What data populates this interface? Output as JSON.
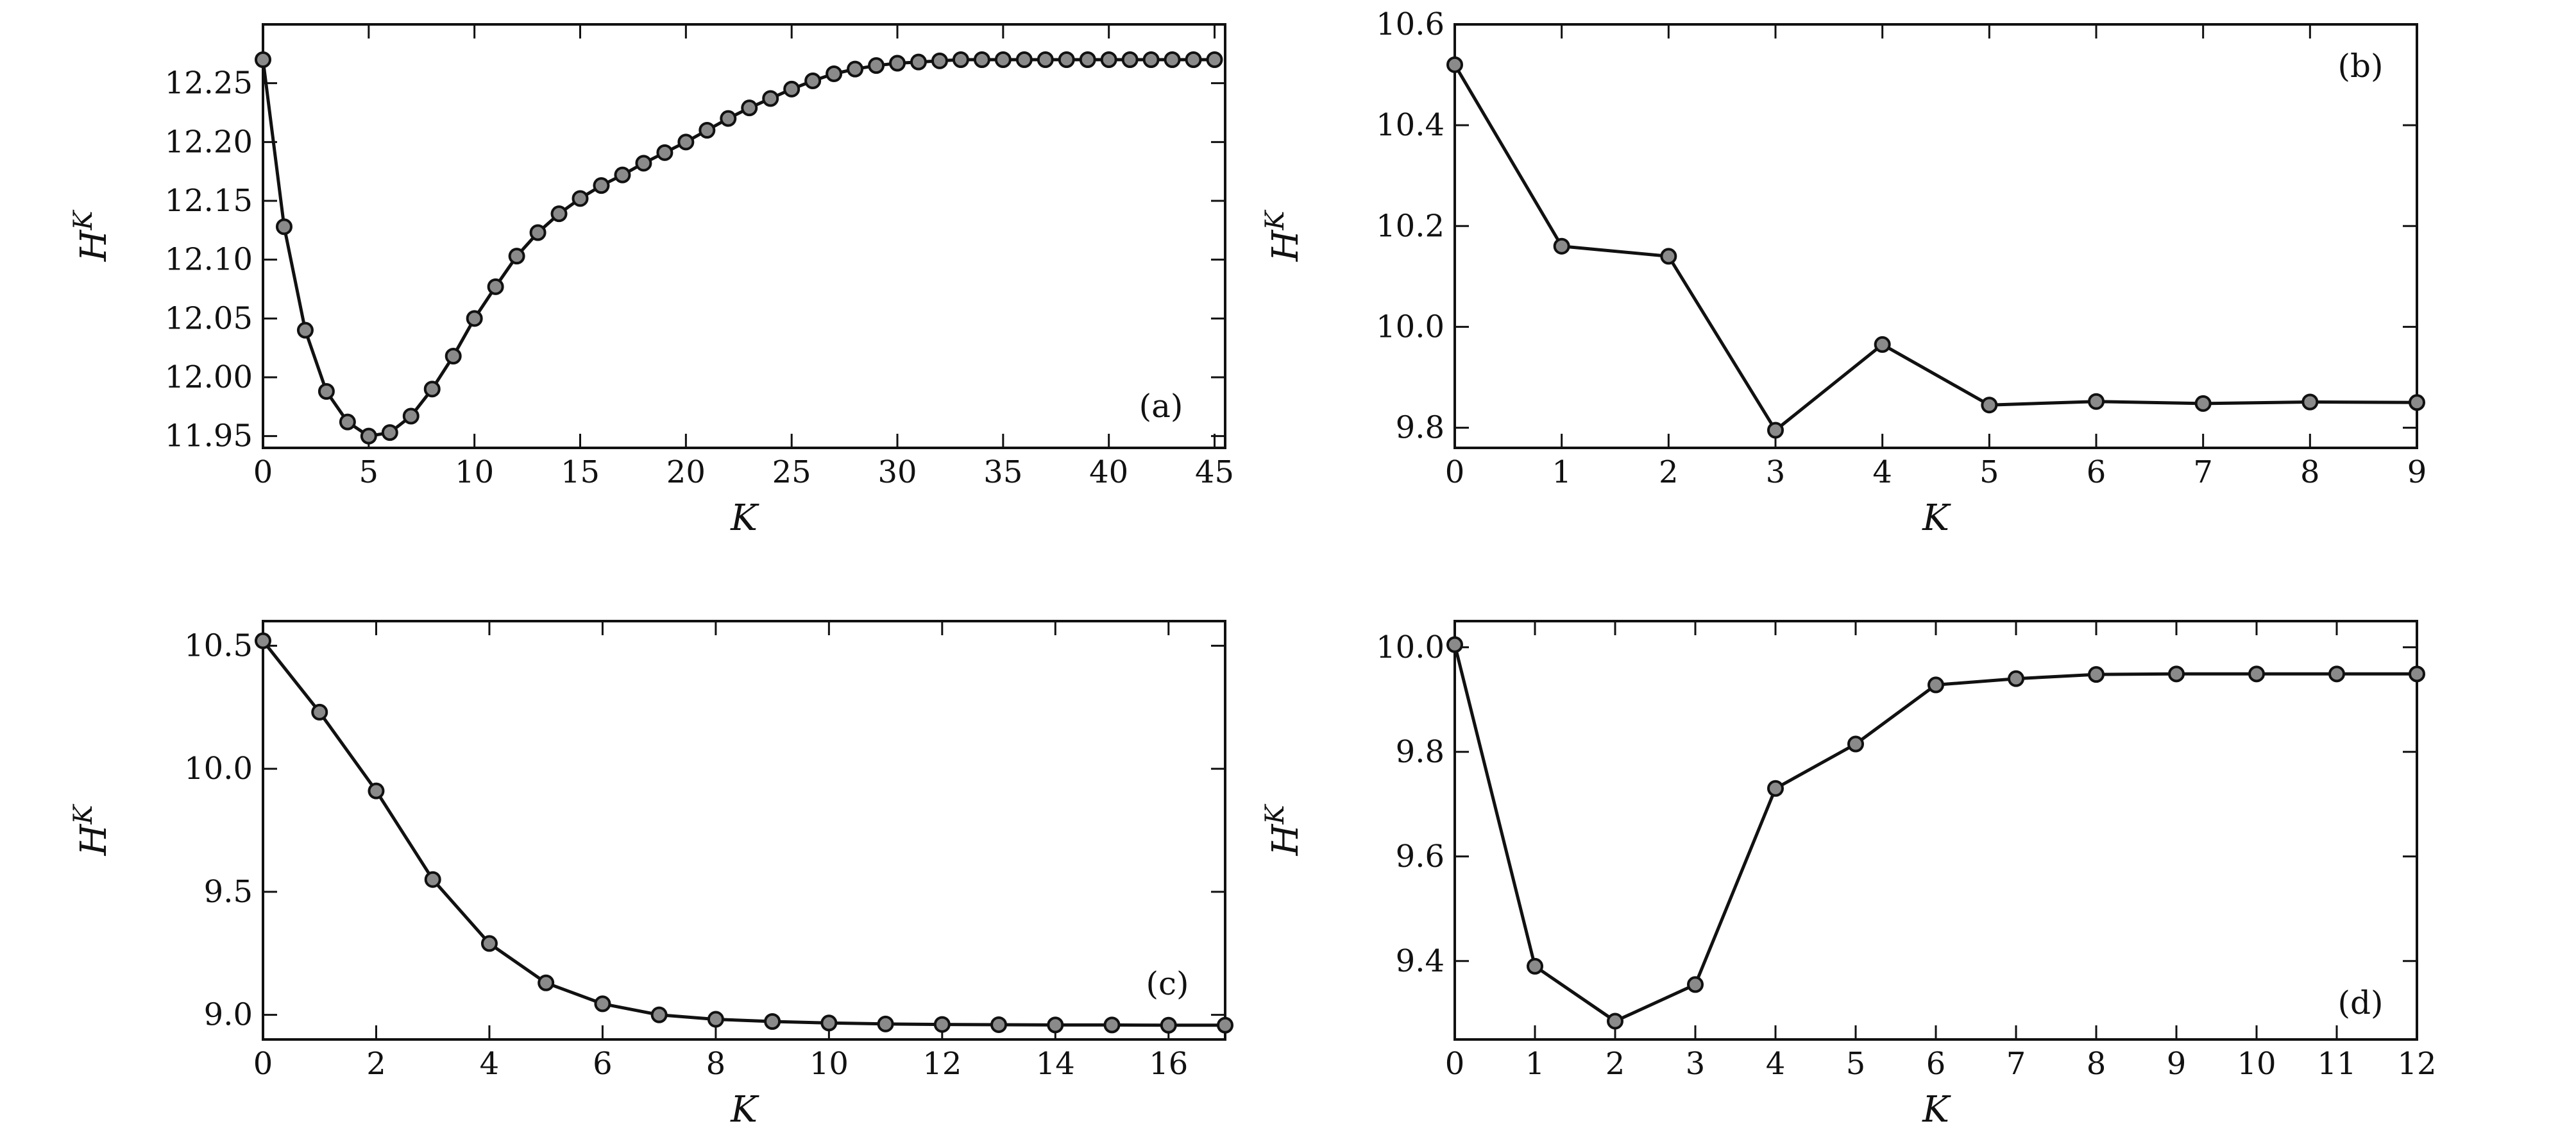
{
  "chart_data": [
    {
      "type": "line",
      "panel_label": "(a)",
      "xlabel": "K",
      "ylabel_base": "H",
      "ylabel_sup": "K",
      "xlim": [
        0,
        45.5
      ],
      "ylim": [
        11.94,
        12.3
      ],
      "xticks": [
        0,
        5,
        10,
        15,
        20,
        25,
        30,
        35,
        40,
        45
      ],
      "xtick_labels": [
        "0",
        "5",
        "10",
        "15",
        "20",
        "25",
        "30",
        "35",
        "40",
        "45"
      ],
      "yticks": [
        11.95,
        12.0,
        12.05,
        12.1,
        12.15,
        12.2,
        12.25
      ],
      "ytick_labels": [
        "11.95",
        "12.00",
        "12.05",
        "12.10",
        "12.15",
        "12.20",
        "12.25"
      ],
      "series": [
        {
          "x": [
            0,
            1,
            2,
            3,
            4,
            5,
            6,
            7,
            8,
            9,
            10,
            11,
            12,
            13,
            14,
            15,
            16,
            17,
            18,
            19,
            20,
            21,
            22,
            23,
            24,
            25,
            26,
            27,
            28,
            29,
            30,
            31,
            32,
            33,
            34,
            35,
            36,
            37,
            38,
            39,
            40,
            41,
            42,
            43,
            44,
            45
          ],
          "values": [
            12.27,
            12.128,
            12.04,
            11.988,
            11.962,
            11.95,
            11.953,
            11.967,
            11.99,
            12.018,
            12.05,
            12.077,
            12.103,
            12.123,
            12.139,
            12.152,
            12.163,
            12.172,
            12.182,
            12.191,
            12.2,
            12.21,
            12.22,
            12.229,
            12.237,
            12.245,
            12.252,
            12.258,
            12.262,
            12.265,
            12.267,
            12.268,
            12.269,
            12.27,
            12.27,
            12.27,
            12.27,
            12.27,
            12.27,
            12.27,
            12.27,
            12.27,
            12.27,
            12.27,
            12.27,
            12.27
          ]
        }
      ]
    },
    {
      "type": "line",
      "panel_label": "(b)",
      "xlabel": "K",
      "ylabel_base": "H",
      "ylabel_sup": "K",
      "xlim": [
        0,
        9
      ],
      "ylim": [
        9.76,
        10.6
      ],
      "xticks": [
        0,
        1,
        2,
        3,
        4,
        5,
        6,
        7,
        8,
        9
      ],
      "xtick_labels": [
        "0",
        "1",
        "2",
        "3",
        "4",
        "5",
        "6",
        "7",
        "8",
        "9"
      ],
      "yticks": [
        9.8,
        10.0,
        10.2,
        10.4,
        10.6
      ],
      "ytick_labels": [
        "9.8",
        "10.0",
        "10.2",
        "10.4",
        "10.6"
      ],
      "series": [
        {
          "x": [
            0,
            1,
            2,
            3,
            4,
            5,
            6,
            7,
            8,
            9
          ],
          "values": [
            10.52,
            10.16,
            10.14,
            9.795,
            9.965,
            9.845,
            9.852,
            9.848,
            9.851,
            9.85
          ]
        }
      ]
    },
    {
      "type": "line",
      "panel_label": "(c)",
      "xlabel": "K",
      "ylabel_base": "H",
      "ylabel_sup": "K",
      "xlim": [
        0,
        17
      ],
      "ylim": [
        8.9,
        10.6
      ],
      "xticks": [
        0,
        2,
        4,
        6,
        8,
        10,
        12,
        14,
        16
      ],
      "xtick_labels": [
        "0",
        "2",
        "4",
        "6",
        "8",
        "10",
        "12",
        "14",
        "16"
      ],
      "yticks": [
        9.0,
        9.5,
        10.0,
        10.5
      ],
      "ytick_labels": [
        "9.0",
        "9.5",
        "10.0",
        "10.5"
      ],
      "series": [
        {
          "x": [
            0,
            1,
            2,
            3,
            4,
            5,
            6,
            7,
            8,
            9,
            10,
            11,
            12,
            13,
            14,
            15,
            16,
            17
          ],
          "values": [
            10.52,
            10.23,
            9.91,
            9.55,
            9.29,
            9.13,
            9.045,
            9.0,
            8.982,
            8.973,
            8.967,
            8.963,
            8.961,
            8.96,
            8.959,
            8.959,
            8.958,
            8.958
          ]
        }
      ]
    },
    {
      "type": "line",
      "panel_label": "(d)",
      "xlabel": "K",
      "ylabel_base": "H",
      "ylabel_sup": "K",
      "xlim": [
        0,
        12
      ],
      "ylim": [
        9.25,
        10.05
      ],
      "xticks": [
        0,
        1,
        2,
        3,
        4,
        5,
        6,
        7,
        8,
        9,
        10,
        11,
        12
      ],
      "xtick_labels": [
        "0",
        "1",
        "2",
        "3",
        "4",
        "5",
        "6",
        "7",
        "8",
        "9",
        "10",
        "11",
        "12"
      ],
      "yticks": [
        9.4,
        9.6,
        9.8,
        10.0
      ],
      "ytick_labels": [
        "9.4",
        "9.6",
        "9.8",
        "10.0"
      ],
      "series": [
        {
          "x": [
            0,
            1,
            2,
            3,
            4,
            5,
            6,
            7,
            8,
            9,
            10,
            11,
            12
          ],
          "values": [
            10.005,
            9.39,
            9.285,
            9.355,
            9.73,
            9.815,
            9.928,
            9.94,
            9.948,
            9.949,
            9.949,
            9.949,
            9.949
          ]
        }
      ]
    }
  ]
}
